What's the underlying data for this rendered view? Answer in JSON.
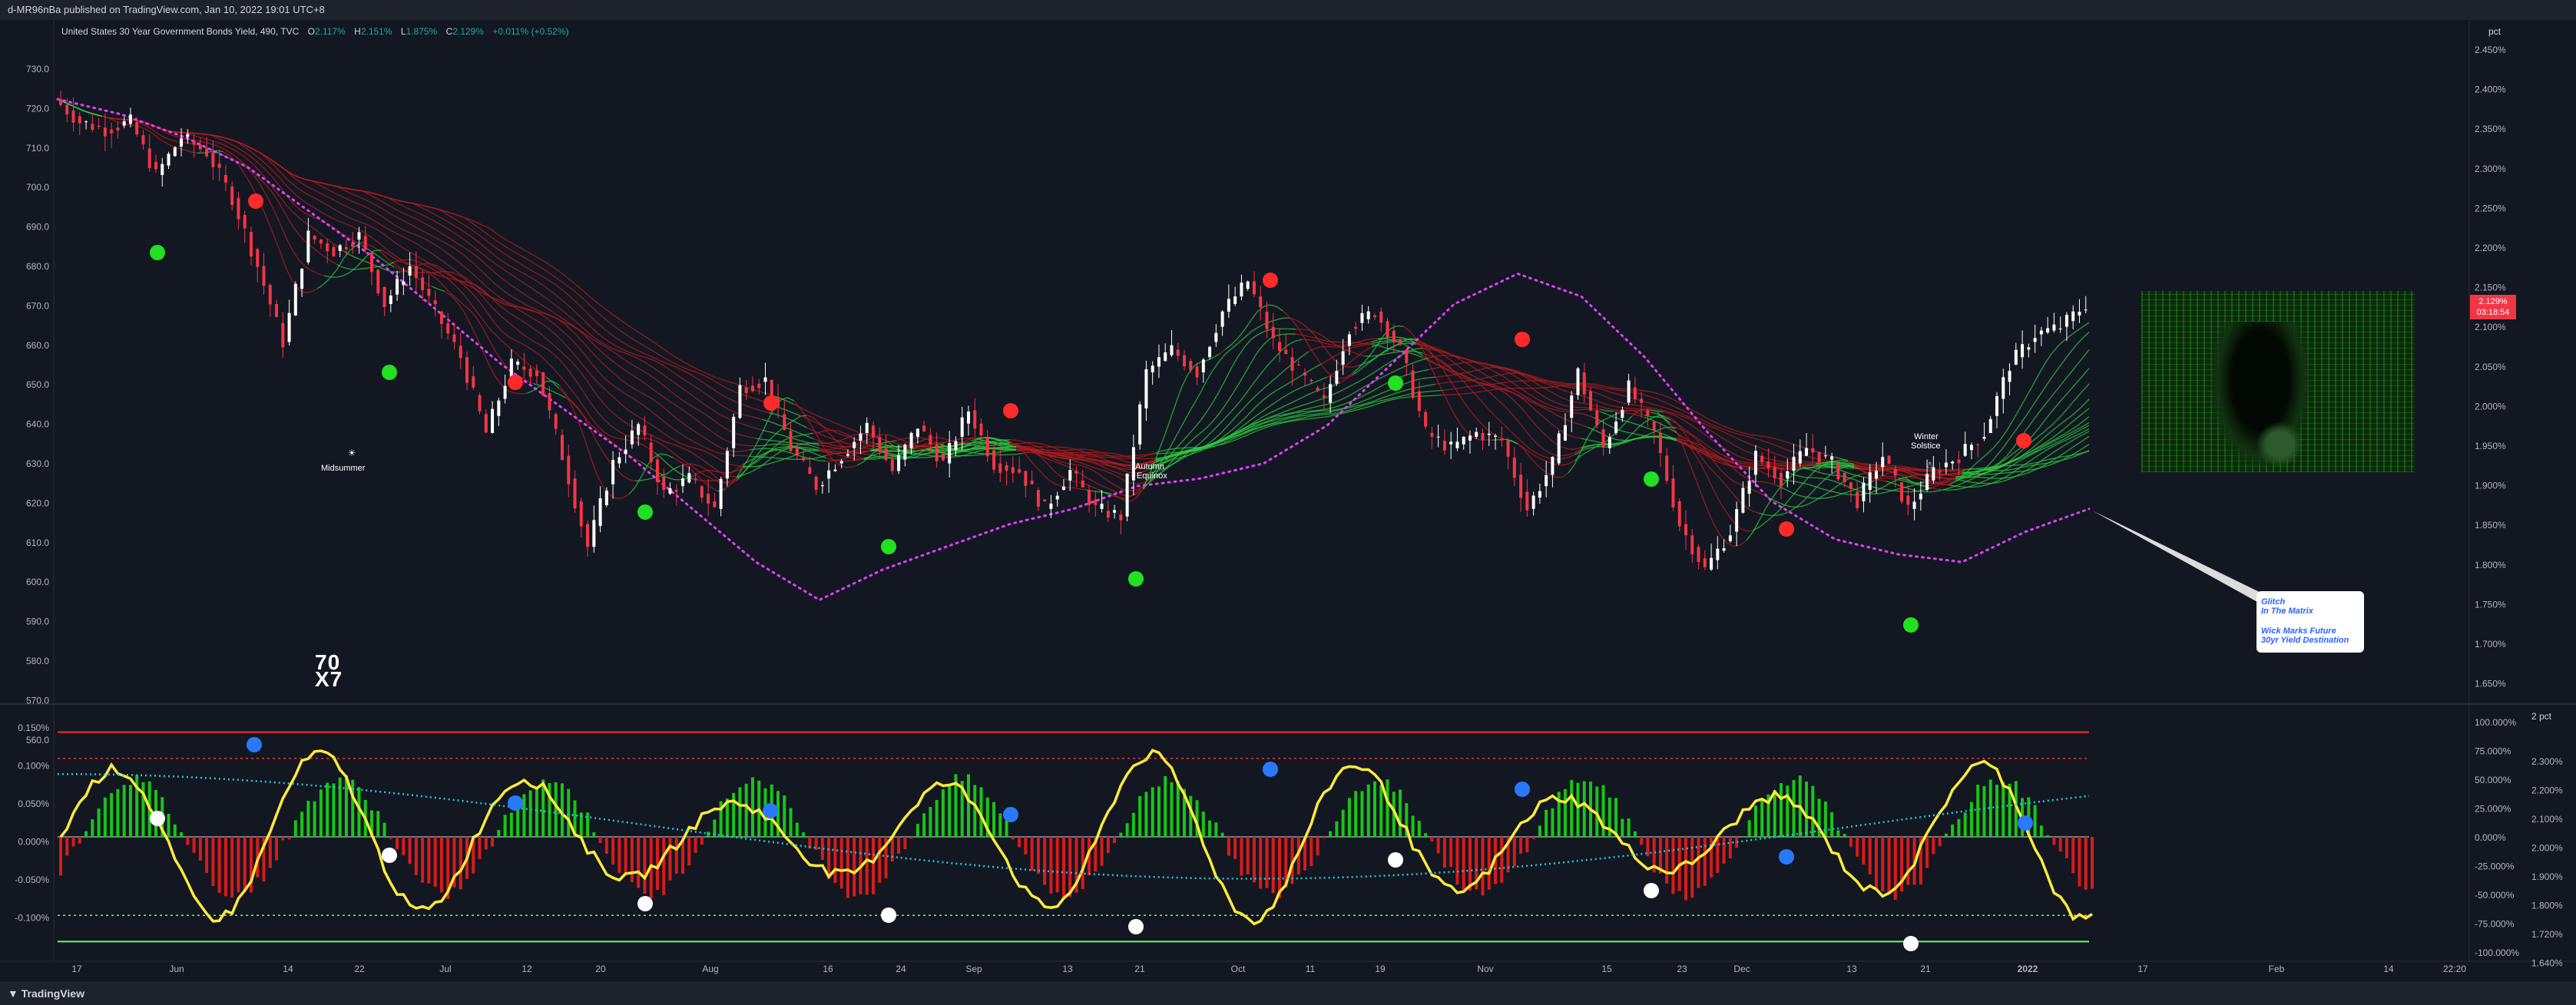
{
  "header": {
    "published": "d-MR96nBa published on TradingView.com, Jan 10, 2022 19:01 UTC+8"
  },
  "legend": {
    "symbol": "United States 30 Year Government Bonds Yield, 490, TVC",
    "o_label": "O",
    "o_value": "2.117%",
    "h_label": "H",
    "h_value": "2.151%",
    "l_label": "L",
    "l_value": "1.875%",
    "c_label": "C",
    "c_value": "2.129%",
    "change": "+0.011% (+0.52%)"
  },
  "footer": {
    "brand": "TradingView"
  },
  "price_tag": {
    "value": "2.129%",
    "countdown": "03:18:54"
  },
  "annotations": {
    "midsummer": "Midsummer",
    "autumn": "Autumn",
    "equinox": "Equinox",
    "winter": "Winter",
    "solstice": "Solstice",
    "watermark_top": "70",
    "watermark_bottom": "X7"
  },
  "note": {
    "lines": [
      "Glitch",
      "In The Matrix",
      "Wick Marks Future",
      "30yr Yield Destination"
    ]
  },
  "colors": {
    "background": "#131722",
    "up_candle": "#ffffff",
    "down_candle": "#f23645",
    "ribbon_bear": "#b71c1c",
    "ribbon_bull": "#2ecc40",
    "dotted_ma": "#e040fb",
    "green_dot": "#22e022",
    "red_dot": "#ff2a2a",
    "osc_line": "#ffeb3b",
    "hist_up": "#19c419",
    "hist_down": "#d81b1b",
    "blue_dot": "#2979ff",
    "cyan_ma": "#26c6da"
  },
  "chart_data": [
    {
      "type": "line",
      "title": "United States 30 Year Government Bonds Yield, 490, TVC",
      "left_axis": {
        "ticks": [
          "730.0",
          "720.0",
          "710.0",
          "700.0",
          "690.0",
          "680.0",
          "670.0",
          "660.0",
          "650.0",
          "640.0",
          "630.0",
          "620.0",
          "610.0",
          "600.0",
          "590.0",
          "580.0",
          "570.0",
          "560.0"
        ]
      },
      "right_axis": {
        "unit": "pct",
        "ticks": [
          "2.450%",
          "2.400%",
          "2.350%",
          "2.300%",
          "2.250%",
          "2.200%",
          "2.150%",
          "2.100%",
          "2.050%",
          "2.000%",
          "1.950%",
          "1.900%",
          "1.850%",
          "1.800%",
          "1.750%",
          "1.700%",
          "1.650%"
        ],
        "ylim": [
          1.62,
          2.47
        ]
      },
      "x_ticks": [
        "17",
        "Jun",
        "14",
        "22",
        "Jul",
        "12",
        "20",
        "Aug",
        "16",
        "24",
        "Sep",
        "13",
        "21",
        "Oct",
        "11",
        "19",
        "Nov",
        "15",
        "23",
        "Dec",
        "13",
        "21",
        "2022",
        "17",
        "Feb",
        "14",
        "22:20"
      ],
      "series": [
        {
          "x_index": [
            0,
            4,
            8,
            12,
            16,
            20,
            24,
            28,
            32,
            36,
            40,
            44,
            48,
            52,
            56,
            60,
            64,
            68,
            72,
            76,
            80,
            84,
            88,
            92,
            96,
            100,
            104,
            108,
            112,
            116,
            120,
            124,
            128,
            132,
            136,
            140,
            144,
            148,
            152,
            156,
            160,
            164,
            168,
            172,
            176,
            180,
            184,
            188,
            192,
            196,
            200,
            204,
            208,
            212,
            216,
            220,
            224,
            228,
            232,
            236,
            240,
            244,
            248,
            252,
            256,
            260,
            264,
            268,
            272,
            276,
            280,
            284,
            288,
            292,
            296,
            300,
            304,
            308,
            312,
            316,
            320
          ],
          "values": [
            2.4,
            2.37,
            2.36,
            2.37,
            2.3,
            2.35,
            2.33,
            2.27,
            2.18,
            2.08,
            2.22,
            2.2,
            2.22,
            2.13,
            2.18,
            2.12,
            2.06,
            1.96,
            2.05,
            2.04,
            1.93,
            1.81,
            1.92,
            1.97,
            1.88,
            1.9,
            1.86,
            2.02,
            2.03,
            1.94,
            1.89,
            1.93,
            1.97,
            1.91,
            1.97,
            1.92,
            1.99,
            1.92,
            1.91,
            1.86,
            1.91,
            1.86,
            1.85,
            2.04,
            2.07,
            2.04,
            2.12,
            2.16,
            2.08,
            2.04,
            2.0,
            2.1,
            2.12,
            2.07,
            1.96,
            1.94,
            1.96,
            1.95,
            1.86,
            1.92,
            2.04,
            1.94,
            2.02,
            1.96,
            1.84,
            1.78,
            1.83,
            1.93,
            1.9,
            1.94,
            1.92,
            1.87,
            1.93,
            1.86,
            1.91,
            1.93,
            1.96,
            2.05,
            2.09,
            2.1,
            2.13
          ]
        }
      ],
      "moving_average_dotted": [
        2.4,
        2.38,
        2.35,
        2.31,
        2.25,
        2.19,
        2.12,
        2.05,
        1.99,
        1.93,
        1.86,
        1.79,
        1.74,
        1.78,
        1.81,
        1.84,
        1.86,
        1.89,
        1.9,
        1.92,
        1.97,
        2.05,
        2.13,
        2.17,
        2.14,
        2.06,
        1.96,
        1.87,
        1.82,
        1.8,
        1.79,
        1.83,
        1.86
      ]
    },
    {
      "type": "line",
      "title": "",
      "left_axis": {
        "ticks": [
          "0.150%",
          "0.100%",
          "0.050%",
          "0.000%",
          "-0.050%",
          "-0.100%"
        ]
      },
      "right_axis": {
        "unit": "pct",
        "ticks": [
          "100.000%",
          "75.000%",
          "50.000%",
          "25.000%",
          "0.000%",
          "-25.000%",
          "-50.000%",
          "-75.000%",
          "-100.000%"
        ],
        "ylim": [
          -110,
          110
        ]
      },
      "secondary_right_axis": {
        "ticks": [
          "2.300%",
          "2.200%",
          "2.100%",
          "2.000%",
          "1.900%",
          "1.800%",
          "1.720%",
          "1.640%"
        ]
      },
      "levels": [
        100,
        75,
        0,
        -75,
        -100
      ]
    }
  ]
}
